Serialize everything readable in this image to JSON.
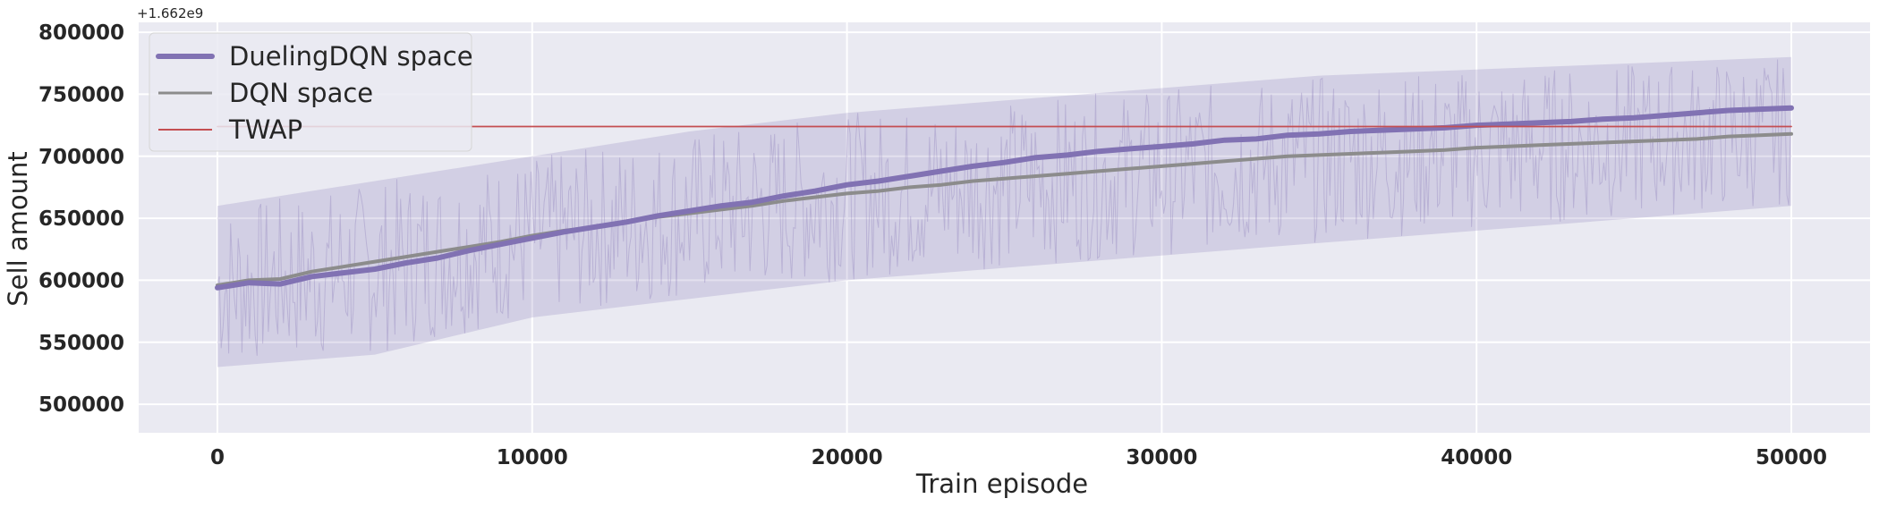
{
  "chart_data": {
    "type": "line",
    "title": "",
    "xlabel": "Train episode",
    "ylabel": "Sell amount",
    "y_offset_label": "+1.662e9",
    "xlim": [
      -2500,
      52500
    ],
    "ylim": [
      477000,
      808000
    ],
    "x_ticks": [
      0,
      10000,
      20000,
      30000,
      40000,
      50000
    ],
    "x_tick_labels": [
      "0",
      "10000",
      "20000",
      "30000",
      "40000",
      "50000"
    ],
    "y_ticks": [
      500000,
      550000,
      600000,
      650000,
      700000,
      750000,
      800000
    ],
    "y_tick_labels": [
      "500000",
      "550000",
      "600000",
      "650000",
      "700000",
      "750000",
      "800000"
    ],
    "grid": true,
    "legend_position": "top-left",
    "series": [
      {
        "name": "DuelingDQN space",
        "color": "#8172b3",
        "x": [
          0,
          1000,
          2000,
          3000,
          4000,
          5000,
          6000,
          7000,
          8000,
          9000,
          10000,
          11000,
          12000,
          13000,
          14000,
          15000,
          16000,
          17000,
          18000,
          19000,
          20000,
          21000,
          22000,
          23000,
          24000,
          25000,
          26000,
          27000,
          28000,
          29000,
          30000,
          31000,
          32000,
          33000,
          34000,
          35000,
          36000,
          37000,
          38000,
          39000,
          40000,
          41000,
          42000,
          43000,
          44000,
          45000,
          46000,
          47000,
          48000,
          49000,
          50000
        ],
        "y": [
          594000,
          598000,
          597000,
          603000,
          606000,
          609000,
          614000,
          618000,
          624000,
          629000,
          634000,
          639000,
          643000,
          647000,
          652000,
          656000,
          660000,
          663000,
          668000,
          672000,
          677000,
          680000,
          684000,
          688000,
          692000,
          695000,
          699000,
          701000,
          704000,
          706000,
          708000,
          710000,
          713000,
          714000,
          717000,
          718000,
          720000,
          721000,
          722000,
          723000,
          725000,
          726000,
          727000,
          728000,
          730000,
          731000,
          733000,
          735000,
          737000,
          738000,
          739000
        ]
      },
      {
        "name": "DQN space",
        "color": "#8c8c8c",
        "x": [
          0,
          1000,
          2000,
          3000,
          4000,
          5000,
          6000,
          7000,
          8000,
          9000,
          10000,
          11000,
          12000,
          13000,
          14000,
          15000,
          16000,
          17000,
          18000,
          19000,
          20000,
          21000,
          22000,
          23000,
          24000,
          25000,
          26000,
          27000,
          28000,
          29000,
          30000,
          31000,
          32000,
          33000,
          34000,
          35000,
          36000,
          37000,
          38000,
          39000,
          40000,
          41000,
          42000,
          43000,
          44000,
          45000,
          46000,
          47000,
          48000,
          49000,
          50000
        ],
        "y": [
          596000,
          600000,
          601000,
          607000,
          611000,
          615000,
          619000,
          623000,
          627000,
          631000,
          636000,
          640000,
          643000,
          647000,
          651000,
          654000,
          657000,
          660000,
          664000,
          667000,
          670000,
          672000,
          675000,
          677000,
          680000,
          682000,
          684000,
          686000,
          688000,
          690000,
          692000,
          694000,
          696000,
          698000,
          700000,
          701000,
          702000,
          703000,
          704000,
          705000,
          707000,
          708000,
          709000,
          710000,
          711000,
          712000,
          713000,
          714000,
          716000,
          717000,
          718000
        ]
      },
      {
        "name": "TWAP",
        "color": "#c44e52",
        "x": [
          0,
          50000
        ],
        "y": [
          724000,
          724000
        ]
      }
    ],
    "band": {
      "series": "DuelingDQN space",
      "color": "#8172b3",
      "x": [
        0,
        5000,
        10000,
        15000,
        20000,
        25000,
        30000,
        35000,
        40000,
        45000,
        50000
      ],
      "lower": [
        530000,
        540000,
        570000,
        585000,
        600000,
        610000,
        620000,
        630000,
        640000,
        650000,
        660000
      ],
      "upper": [
        660000,
        680000,
        700000,
        720000,
        735000,
        745000,
        755000,
        765000,
        770000,
        775000,
        780000
      ]
    }
  }
}
